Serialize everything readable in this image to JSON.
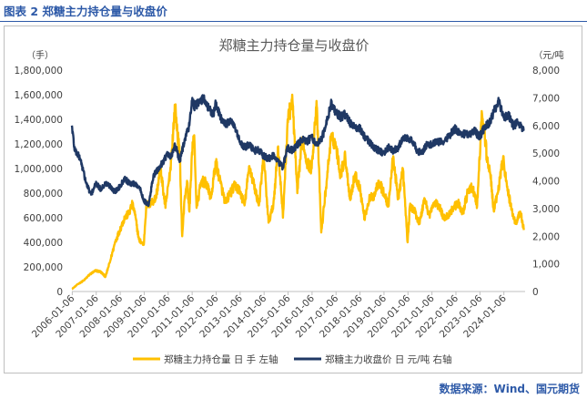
{
  "figure_label": "图表 2  郑糖主力持仓量与收盘价",
  "source": "数据来源：Wind、国元期货",
  "chart_data": {
    "type": "line",
    "title": "郑糖主力持仓量与收盘价",
    "left_unit": "（手）",
    "right_unit": "（元/吨",
    "left_ticks": [
      "0",
      "200,000",
      "400,000",
      "600,000",
      "800,000",
      "1,000,000",
      "1,200,000",
      "1,400,000",
      "1,600,000",
      "1,800,000"
    ],
    "right_ticks": [
      "0",
      "1,000",
      "2,000",
      "3,000",
      "4,000",
      "5,000",
      "6,000",
      "7,000",
      "8,000"
    ],
    "x_ticks": [
      "2006-01-06",
      "2007-01-06",
      "2008-01-06",
      "2009-01-06",
      "2010-01-06",
      "2011-01-06",
      "2012-01-06",
      "2013-01-06",
      "2014-01-06",
      "2015-01-06",
      "2016-01-06",
      "2017-01-06",
      "2018-01-06",
      "2019-01-06",
      "2020-01-06",
      "2021-01-06",
      "2022-01-06",
      "2023-01-06",
      "2024-01-06"
    ],
    "ylim_left": [
      0,
      1800000
    ],
    "ylim_right": [
      0,
      8000
    ],
    "xlim": [
      2006.0,
      2024.9
    ],
    "grid": false,
    "legend_position": "bottom",
    "colors": {
      "position": "#ffc000",
      "price": "#1f3864"
    },
    "series": [
      {
        "name": "郑糖主力持仓量 日 手 左轴",
        "axis": "left",
        "x": [
          2006.0,
          2006.25,
          2006.5,
          2006.75,
          2007.0,
          2007.2,
          2007.4,
          2007.6,
          2007.8,
          2008.0,
          2008.2,
          2008.4,
          2008.5,
          2008.6,
          2008.8,
          2009.0,
          2009.1,
          2009.3,
          2009.5,
          2009.7,
          2009.9,
          2010.1,
          2010.3,
          2010.5,
          2010.6,
          2010.7,
          2010.8,
          2010.9,
          2011.0,
          2011.1,
          2011.2,
          2011.4,
          2011.6,
          2011.8,
          2012.0,
          2012.2,
          2012.4,
          2012.6,
          2012.8,
          2013.0,
          2013.2,
          2013.4,
          2013.6,
          2013.8,
          2014.0,
          2014.2,
          2014.4,
          2014.6,
          2014.8,
          2015.0,
          2015.2,
          2015.4,
          2015.6,
          2015.8,
          2016.0,
          2016.2,
          2016.4,
          2016.6,
          2016.8,
          2017.0,
          2017.2,
          2017.4,
          2017.6,
          2017.8,
          2018.0,
          2018.2,
          2018.4,
          2018.6,
          2018.8,
          2019.0,
          2019.2,
          2019.4,
          2019.6,
          2019.8,
          2020.0,
          2020.1,
          2020.3,
          2020.5,
          2020.7,
          2020.9,
          2021.1,
          2021.3,
          2021.5,
          2021.7,
          2021.9,
          2022.1,
          2022.3,
          2022.5,
          2022.7,
          2022.9,
          2023.1,
          2023.2,
          2023.3,
          2023.45,
          2023.6,
          2023.8,
          2024.0,
          2024.1,
          2024.3,
          2024.5,
          2024.7,
          2024.85
        ],
        "values": [
          20000,
          60000,
          90000,
          140000,
          170000,
          160000,
          120000,
          250000,
          400000,
          500000,
          600000,
          640000,
          710000,
          660000,
          420000,
          380000,
          700000,
          720000,
          760000,
          1000000,
          680000,
          980000,
          1500000,
          1100000,
          450000,
          750000,
          900000,
          650000,
          1100000,
          1270000,
          680000,
          900000,
          880000,
          760000,
          1050000,
          880000,
          720000,
          800000,
          860000,
          820000,
          700000,
          1020000,
          860000,
          700000,
          1100000,
          560000,
          700000,
          1180000,
          600000,
          1400000,
          1550000,
          800000,
          1250000,
          1050000,
          1000000,
          1550000,
          480000,
          850000,
          1250000,
          1200000,
          950000,
          1100000,
          750000,
          950000,
          850000,
          600000,
          750000,
          780000,
          900000,
          800000,
          700000,
          1100000,
          750000,
          1000000,
          400000,
          700000,
          650000,
          550000,
          760000,
          620000,
          720000,
          700000,
          600000,
          620000,
          680000,
          720000,
          640000,
          800000,
          850000,
          700000,
          1450000,
          1300000,
          1100000,
          950000,
          650000,
          850000,
          1100000,
          900000,
          700000,
          550000,
          650000,
          500000
        ]
      },
      {
        "name": "郑糖主力收盘价 日 元/吨 右轴",
        "axis": "right",
        "x": [
          2006.0,
          2006.1,
          2006.2,
          2006.35,
          2006.6,
          2006.8,
          2007.0,
          2007.2,
          2007.4,
          2007.6,
          2007.8,
          2008.0,
          2008.2,
          2008.4,
          2008.6,
          2008.8,
          2009.0,
          2009.2,
          2009.4,
          2009.6,
          2009.8,
          2010.0,
          2010.1,
          2010.3,
          2010.5,
          2010.7,
          2010.9,
          2011.0,
          2011.1,
          2011.3,
          2011.5,
          2011.7,
          2011.9,
          2012.0,
          2012.2,
          2012.4,
          2012.6,
          2012.8,
          2013.0,
          2013.2,
          2013.4,
          2013.6,
          2013.8,
          2014.0,
          2014.2,
          2014.4,
          2014.6,
          2014.8,
          2015.0,
          2015.2,
          2015.4,
          2015.6,
          2015.8,
          2016.0,
          2016.2,
          2016.4,
          2016.6,
          2016.8,
          2017.0,
          2017.2,
          2017.4,
          2017.6,
          2017.8,
          2018.0,
          2018.2,
          2018.4,
          2018.6,
          2018.8,
          2019.0,
          2019.2,
          2019.4,
          2019.6,
          2019.8,
          2020.0,
          2020.2,
          2020.4,
          2020.6,
          2020.8,
          2021.0,
          2021.2,
          2021.4,
          2021.6,
          2021.8,
          2022.0,
          2022.2,
          2022.4,
          2022.6,
          2022.8,
          2023.0,
          2023.2,
          2023.4,
          2023.6,
          2023.8,
          2024.0,
          2024.2,
          2024.4,
          2024.6,
          2024.85
        ],
        "values": [
          6000,
          5200,
          5000,
          4800,
          3900,
          3500,
          3900,
          3700,
          3900,
          3800,
          3600,
          3800,
          4100,
          3900,
          3900,
          3800,
          3300,
          3100,
          4200,
          4400,
          4700,
          5000,
          4800,
          5300,
          4700,
          5500,
          6000,
          6900,
          6700,
          6800,
          7000,
          6600,
          6400,
          6800,
          6300,
          6000,
          6200,
          5900,
          5400,
          5200,
          5300,
          5100,
          5100,
          4900,
          4800,
          4900,
          4700,
          4500,
          5200,
          5100,
          5300,
          5500,
          5400,
          5600,
          5300,
          5500,
          6000,
          6800,
          6500,
          6300,
          6400,
          6100,
          5900,
          5900,
          5600,
          5400,
          5200,
          5100,
          5000,
          5200,
          5100,
          5200,
          5500,
          5600,
          5400,
          5100,
          5000,
          5300,
          5300,
          5400,
          5400,
          5500,
          5700,
          5900,
          5700,
          5700,
          5700,
          5800,
          5600,
          5900,
          6100,
          6500,
          6900,
          6300,
          6400,
          6000,
          6100,
          5800
        ]
      }
    ]
  }
}
